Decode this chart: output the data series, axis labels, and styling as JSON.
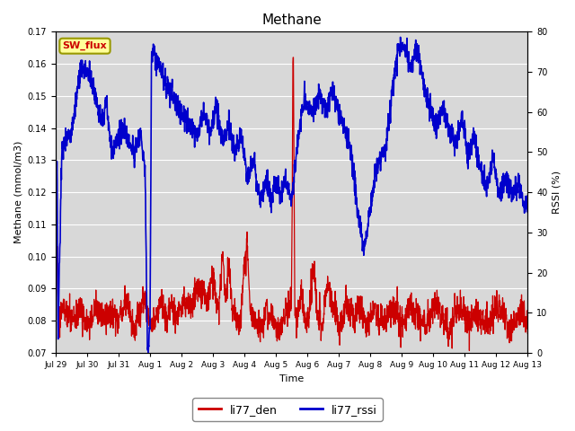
{
  "title": "Methane",
  "xlabel": "Time",
  "ylabel_left": "Methane (mmol/m3)",
  "ylabel_right": "RSSI (%)",
  "ylim_left": [
    0.07,
    0.17
  ],
  "ylim_right": [
    0,
    80
  ],
  "yticks_left": [
    0.07,
    0.08,
    0.09,
    0.1,
    0.11,
    0.12,
    0.13,
    0.14,
    0.15,
    0.16,
    0.17
  ],
  "yticks_right": [
    0,
    10,
    20,
    30,
    40,
    50,
    60,
    70,
    80
  ],
  "xtick_labels": [
    "Jul 29",
    "Jul 30",
    "Jul 31",
    "Aug 1",
    "Aug 2",
    "Aug 3",
    "Aug 4",
    "Aug 5",
    "Aug 6",
    "Aug 7",
    "Aug 8",
    "Aug 9",
    "Aug 10",
    "Aug 11",
    "Aug 12",
    "Aug 13"
  ],
  "color_red": "#cc0000",
  "color_blue": "#0000cc",
  "legend_labels": [
    "li77_den",
    "li77_rssi"
  ],
  "sw_flux_label": "SW_flux",
  "sw_flux_facecolor": "#ffff99",
  "sw_flux_edgecolor": "#999900",
  "sw_flux_textcolor": "#cc0000",
  "plot_bg": "#d8d8d8",
  "fig_bg": "#ffffff",
  "grid_color": "#ffffff",
  "linewidth_red": 0.9,
  "linewidth_blue": 1.2
}
